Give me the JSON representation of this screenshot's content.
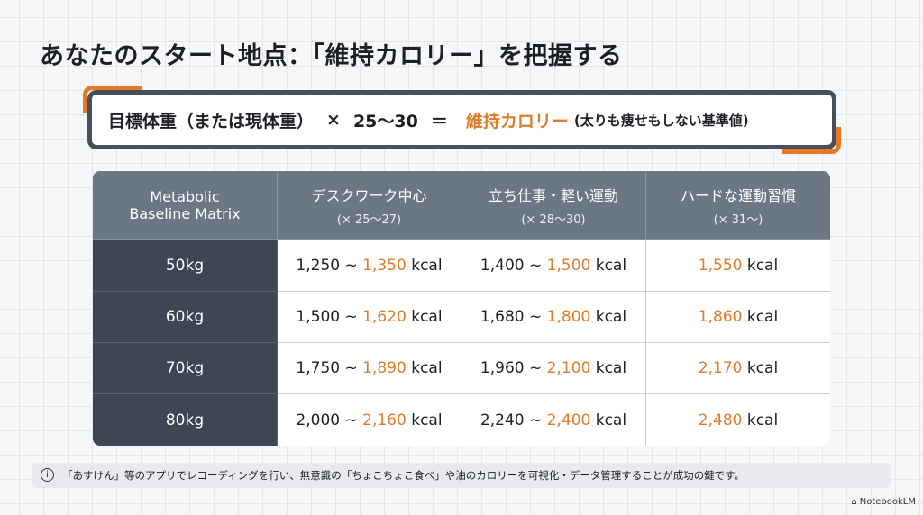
{
  "title": "あなたのスタート地点：「維持カロリー」を把握する",
  "formula": {
    "left": "目標体重（または現体重）",
    "times": "×",
    "factor": "25〜30",
    "equals": "＝",
    "result": "維持カロリー",
    "note": "(太りも痩せもしない基準値)"
  },
  "table": {
    "corner": [
      "Metabolic",
      "Baseline Matrix"
    ],
    "headers": [
      {
        "main": "デスクワーク中心",
        "sub": "(× 25〜27)"
      },
      {
        "main": "立ち仕事・軽い運動",
        "sub": "(× 28〜30)"
      },
      {
        "main": "ハードな運動習慣",
        "sub": "(× 31〜)"
      }
    ],
    "rows": [
      {
        "weight": "50kg",
        "c1a": "1,250 ~ ",
        "c1b": "1,350",
        "c2a": "1,400 ~ ",
        "c2b": "1,500",
        "c3": "1,550"
      },
      {
        "weight": "60kg",
        "c1a": "1,500 ~ ",
        "c1b": "1,620",
        "c2a": "1,680 ~ ",
        "c2b": "1,800",
        "c3": "1,860"
      },
      {
        "weight": "70kg",
        "c1a": "1,750 ~ ",
        "c1b": "1,890",
        "c2a": "1,960 ~ ",
        "c2b": "2,100",
        "c3": "2,170"
      },
      {
        "weight": "80kg",
        "c1a": "2,000 ~ ",
        "c1b": "2,160",
        "c2a": "2,240 ~ ",
        "c2b": "2,400",
        "c3": "2,480"
      }
    ],
    "unit": " kcal"
  },
  "footer": {
    "icon": "info-icon",
    "text": "「あすけん」等のアプリでレコーディングを行い、無意識の「ちょこちょこ食べ」や油のカロリーを可視化・データ管理することが成功の鍵です。"
  },
  "brand": "NotebookLM",
  "colors": {
    "accent": "#e07b2a",
    "header": "#6b7785",
    "rowHeader": "#3c4654"
  }
}
